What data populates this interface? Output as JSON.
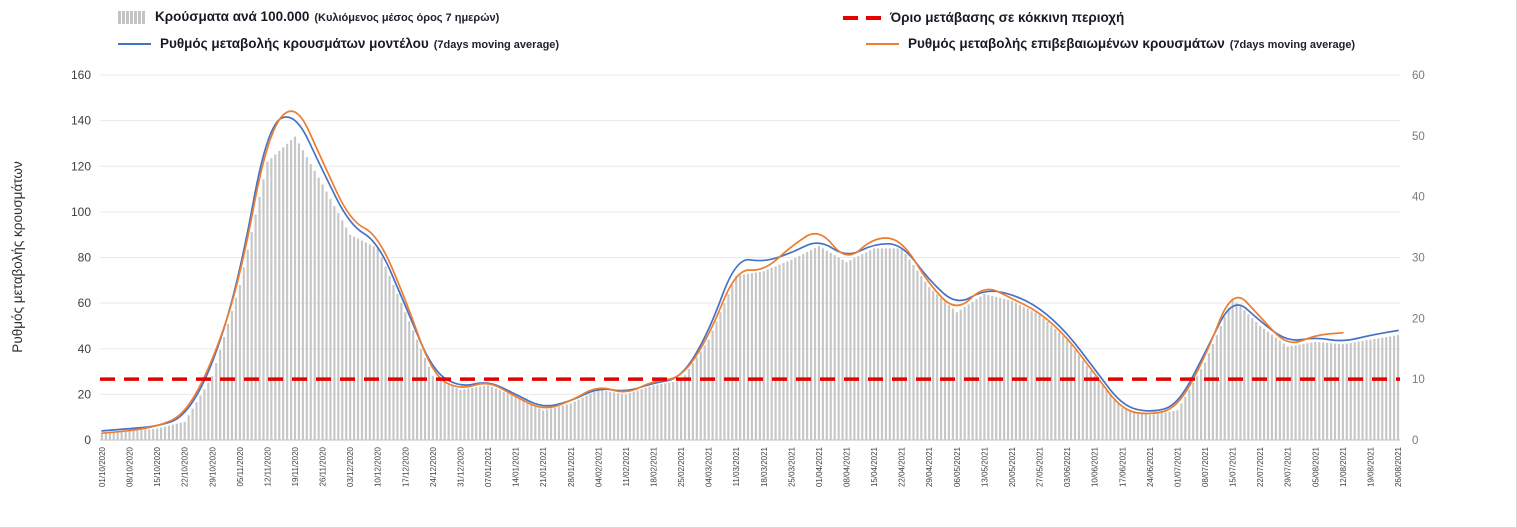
{
  "legend": {
    "items": [
      {
        "id": "cases-bars",
        "label": "Κρούσματα ανά 100.000",
        "sublabel": "(Κυλιόμενος μέσος όρος 7 ημερών)"
      },
      {
        "id": "red-threshold",
        "label": "Όριο μετάβασης σε κόκκινη περιοχή",
        "sublabel": ""
      },
      {
        "id": "model-rate",
        "label": "Ρυθμός μεταβολής κρουσμάτων μοντέλου",
        "sublabel": "(7days moving average)"
      },
      {
        "id": "confirmed-rate",
        "label": "Ρυθμός μεταβολής επιβεβαιωμένων κρουσμάτων",
        "sublabel": "(7days moving average)"
      }
    ]
  },
  "chart_data": {
    "type": "bar+line",
    "title": "",
    "left_axis": {
      "title": "Ρυθμός μεταβολής κρουσμάτων",
      "min": 0,
      "max": 160,
      "step": 20
    },
    "right_axis": {
      "min": 0,
      "max": 60,
      "step": 10
    },
    "grid": "horizontal",
    "x_tick_interval": "weekly",
    "x_labels": [
      "01/10/2020",
      "08/10/2020",
      "15/10/2020",
      "22/10/2020",
      "29/10/2020",
      "05/11/2020",
      "12/11/2020",
      "19/11/2020",
      "26/11/2020",
      "03/12/2020",
      "10/12/2020",
      "17/12/2020",
      "24/12/2020",
      "31/12/2020",
      "07/01/2021",
      "14/01/2021",
      "21/01/2021",
      "28/01/2021",
      "04/02/2021",
      "11/02/2021",
      "18/02/2021",
      "25/02/2021",
      "04/03/2021",
      "11/03/2021",
      "18/03/2021",
      "25/03/2021",
      "01/04/2021",
      "08/04/2021",
      "15/04/2021",
      "22/04/2021",
      "29/04/2021",
      "06/05/2021",
      "13/05/2021",
      "20/05/2021",
      "27/05/2021",
      "03/06/2021",
      "10/06/2021",
      "17/06/2021",
      "24/06/2021",
      "01/07/2021",
      "08/07/2021",
      "15/07/2021",
      "22/07/2021",
      "29/07/2021",
      "05/08/2021",
      "12/08/2021",
      "19/08/2021",
      "26/08/2021"
    ],
    "series": [
      {
        "name": "Κρούσματα ανά 100.000 (Κυλιόμενος μέσος όρος 7 ημερών)",
        "type": "bar",
        "color": "#c7c7c7",
        "values": [
          3,
          4,
          5,
          8,
          28,
          68,
          122,
          133,
          112,
          90,
          84,
          56,
          28,
          22,
          24,
          19,
          13,
          16,
          22,
          20,
          24,
          26,
          44,
          72,
          74,
          79,
          85,
          78,
          84,
          84,
          67,
          56,
          64,
          61,
          55,
          44,
          28,
          14,
          11,
          13,
          34,
          62,
          50,
          41,
          43,
          42,
          44,
          46
        ]
      },
      {
        "name": "Ρυθμός μεταβολής κρουσμάτων μοντέλου (7days moving average)",
        "type": "line",
        "color": "#4472c4",
        "values": [
          4,
          5,
          6,
          10,
          32,
          72,
          138,
          144,
          118,
          94,
          87,
          59,
          30,
          23,
          26,
          20,
          14,
          17,
          23,
          21,
          25,
          27,
          47,
          80,
          78,
          82,
          88,
          80,
          86,
          86,
          70,
          59,
          66,
          64,
          58,
          47,
          31,
          15,
          12,
          15,
          38,
          63,
          52,
          43,
          45,
          43,
          46,
          48
        ]
      },
      {
        "name": "Ρυθμός μεταβολής επιβεβαιωμένων κρουσμάτων (7days moving average)",
        "type": "line",
        "color": "#ed7d31",
        "values": [
          3,
          4,
          6,
          11,
          34,
          70,
          134,
          149,
          122,
          96,
          90,
          62,
          28,
          22,
          26,
          19,
          13,
          17,
          24,
          20,
          26,
          27,
          45,
          75,
          74,
          85,
          93,
          78,
          89,
          88,
          68,
          56,
          68,
          62,
          56,
          45,
          29,
          13,
          11,
          14,
          36,
          67,
          54,
          41,
          46,
          47,
          null,
          null
        ]
      }
    ],
    "threshold": {
      "name": "Όριο μετάβασης σε κόκκινη περιοχή",
      "value_right_axis": 10,
      "value_left_axis": 26.7,
      "color": "#e60000",
      "style": "dashed"
    }
  }
}
